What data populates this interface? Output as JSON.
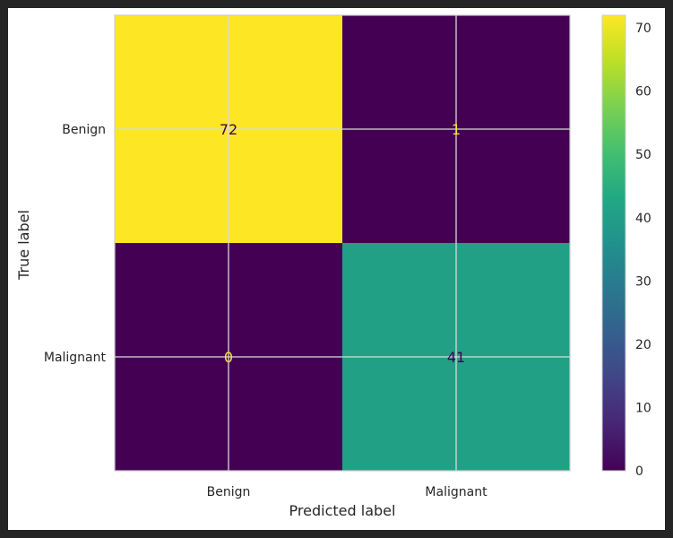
{
  "chart_data": {
    "type": "heatmap",
    "title": "",
    "xlabel": "Predicted label",
    "ylabel": "True label",
    "x_categories": [
      "Benign",
      "Malignant"
    ],
    "y_categories": [
      "Benign",
      "Malignant"
    ],
    "matrix": [
      [
        72,
        1
      ],
      [
        0,
        41
      ]
    ],
    "cell_colors": [
      [
        "#fde725",
        "#440154"
      ],
      [
        "#440154",
        "#21a085"
      ]
    ],
    "cell_text_colors": [
      [
        "#440154",
        "#fde725"
      ],
      [
        "#fde725",
        "#440154"
      ]
    ],
    "colorbar": {
      "min": 0,
      "max": 72,
      "ticks": [
        0,
        10,
        20,
        30,
        40,
        50,
        60,
        70
      ],
      "colormap": "viridis"
    },
    "grid": true
  }
}
